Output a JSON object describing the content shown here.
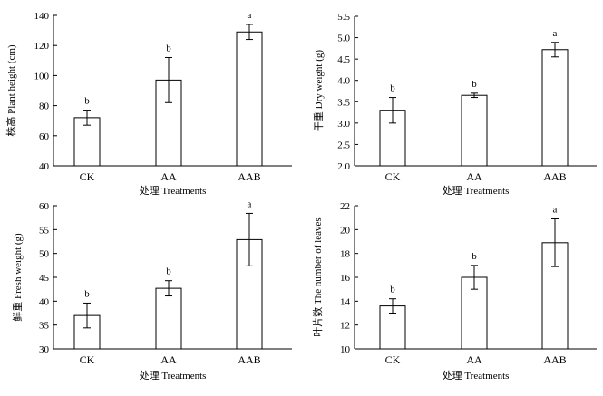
{
  "chart_data": [
    {
      "type": "bar",
      "categories": [
        "CK",
        "AA",
        "AAB"
      ],
      "values": [
        72,
        97,
        129
      ],
      "errors": [
        5,
        15,
        5
      ],
      "significance": [
        "b",
        "b",
        "a"
      ],
      "xlabel": "处理 Treatments",
      "ylabel": "株高 Plant height (cm)",
      "ylim": [
        40,
        140
      ],
      "yticks": [
        "40",
        "60",
        "80",
        "100",
        "120",
        "140"
      ],
      "grid": false
    },
    {
      "type": "bar",
      "categories": [
        "CK",
        "AA",
        "AAB"
      ],
      "values": [
        3.3,
        3.65,
        4.72
      ],
      "errors": [
        0.3,
        0.05,
        0.17
      ],
      "significance": [
        "b",
        "b",
        "a"
      ],
      "xlabel": "处理 Treatments",
      "ylabel": "干重 Dry weight (g)",
      "ylim": [
        2.0,
        5.5
      ],
      "yticks": [
        "2.0",
        "2.5",
        "3.0",
        "3.5",
        "4.0",
        "4.5",
        "5.0",
        "5.5"
      ],
      "grid": false
    },
    {
      "type": "bar",
      "categories": [
        "CK",
        "AA",
        "AAB"
      ],
      "values": [
        37,
        42.7,
        52.9
      ],
      "errors": [
        2.6,
        1.6,
        5.5
      ],
      "significance": [
        "b",
        "b",
        "a"
      ],
      "xlabel": "处理 Treatments",
      "ylabel": "鲜重 Fresh weight (g)",
      "ylim": [
        30,
        60
      ],
      "yticks": [
        "30",
        "35",
        "40",
        "45",
        "50",
        "55",
        "60"
      ],
      "grid": false
    },
    {
      "type": "bar",
      "categories": [
        "CK",
        "AA",
        "AAB"
      ],
      "values": [
        13.6,
        16,
        18.9
      ],
      "errors": [
        0.6,
        1,
        2
      ],
      "significance": [
        "b",
        "b",
        "a"
      ],
      "xlabel": "处理 Treatments",
      "ylabel": "叶片数 The number of leaves",
      "ylim": [
        10,
        22
      ],
      "yticks": [
        "10",
        "12",
        "14",
        "16",
        "18",
        "20",
        "22"
      ],
      "grid": false
    }
  ]
}
